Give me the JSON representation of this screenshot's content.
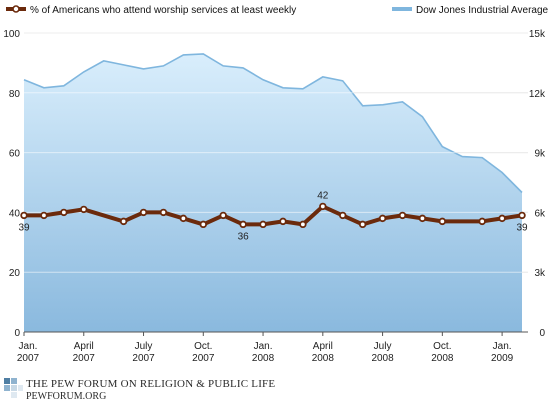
{
  "chart_data": {
    "type": "line",
    "legend": {
      "worship": "% of Americans who attend worship services at least weekly",
      "dow": "Dow Jones Industrial Average"
    },
    "x_ticks": [
      {
        "line1": "Jan.",
        "line2": "2007",
        "month": 0
      },
      {
        "line1": "April",
        "line2": "2007",
        "month": 3
      },
      {
        "line1": "July",
        "line2": "2007",
        "month": 6
      },
      {
        "line1": "Oct.",
        "line2": "2007",
        "month": 9
      },
      {
        "line1": "Jan.",
        "line2": "2008",
        "month": 12
      },
      {
        "line1": "April",
        "line2": "2008",
        "month": 15
      },
      {
        "line1": "July",
        "line2": "2008",
        "month": 18
      },
      {
        "line1": "Oct.",
        "line2": "2008",
        "month": 21
      },
      {
        "line1": "Jan.",
        "line2": "2009",
        "month": 24
      }
    ],
    "left_axis": {
      "ticks": [
        "0",
        "20",
        "40",
        "60",
        "80",
        "100"
      ],
      "range": [
        0,
        100
      ]
    },
    "right_axis": {
      "ticks": [
        "0",
        "3k",
        "6k",
        "9k",
        "12k",
        "15k"
      ],
      "range": [
        0,
        15000
      ]
    },
    "series": [
      {
        "name": "% of Americans who attend worship services at least weekly",
        "axis": "left",
        "color": "#6b2a0c",
        "points": [
          {
            "m": 0.0,
            "v": 39,
            "label": "39"
          },
          {
            "m": 1.0,
            "v": 39
          },
          {
            "m": 2.0,
            "v": 40
          },
          {
            "m": 3.0,
            "v": 41
          },
          {
            "m": 5.0,
            "v": 37
          },
          {
            "m": 6.0,
            "v": 40
          },
          {
            "m": 7.0,
            "v": 40
          },
          {
            "m": 8.0,
            "v": 38
          },
          {
            "m": 9.0,
            "v": 36
          },
          {
            "m": 10.0,
            "v": 39
          },
          {
            "m": 11.0,
            "v": 36,
            "label": "36"
          },
          {
            "m": 12.0,
            "v": 36
          },
          {
            "m": 13.0,
            "v": 37
          },
          {
            "m": 14.0,
            "v": 36
          },
          {
            "m": 15.0,
            "v": 42,
            "label": "42"
          },
          {
            "m": 16.0,
            "v": 39
          },
          {
            "m": 17.0,
            "v": 36
          },
          {
            "m": 18.0,
            "v": 38
          },
          {
            "m": 19.0,
            "v": 39
          },
          {
            "m": 20.0,
            "v": 38
          },
          {
            "m": 21.0,
            "v": 37
          },
          {
            "m": 23.0,
            "v": 37
          },
          {
            "m": 24.0,
            "v": 38
          },
          {
            "m": 25.0,
            "v": 39,
            "label": "39"
          }
        ]
      },
      {
        "name": "Dow Jones Industrial Average",
        "axis": "right",
        "color": "#7fb6de",
        "fill": "area",
        "points": [
          {
            "m": 0.0,
            "v": 12650
          },
          {
            "m": 1.0,
            "v": 12250
          },
          {
            "m": 2.0,
            "v": 12350
          },
          {
            "m": 3.0,
            "v": 13050
          },
          {
            "m": 4.0,
            "v": 13600
          },
          {
            "m": 5.0,
            "v": 13400
          },
          {
            "m": 6.0,
            "v": 13200
          },
          {
            "m": 7.0,
            "v": 13350
          },
          {
            "m": 8.0,
            "v": 13900
          },
          {
            "m": 9.0,
            "v": 13950
          },
          {
            "m": 10.0,
            "v": 13350
          },
          {
            "m": 11.0,
            "v": 13250
          },
          {
            "m": 12.0,
            "v": 12650
          },
          {
            "m": 13.0,
            "v": 12250
          },
          {
            "m": 14.0,
            "v": 12200
          },
          {
            "m": 15.0,
            "v": 12800
          },
          {
            "m": 16.0,
            "v": 12600
          },
          {
            "m": 17.0,
            "v": 11350
          },
          {
            "m": 18.0,
            "v": 11400
          },
          {
            "m": 19.0,
            "v": 11550
          },
          {
            "m": 20.0,
            "v": 10800
          },
          {
            "m": 21.0,
            "v": 9300
          },
          {
            "m": 22.0,
            "v": 8800
          },
          {
            "m": 23.0,
            "v": 8750
          },
          {
            "m": 24.0,
            "v": 8000
          },
          {
            "m": 25.0,
            "v": 7000
          }
        ]
      }
    ],
    "grid": true
  },
  "footer": {
    "org_name": "THE PEW FORUM ON RELIGION & PUBLIC LIFE",
    "url": "PEWFORUM.ORG"
  },
  "colors": {
    "worship_line": "#6b2a0c",
    "dow_line": "#7fb6de",
    "area_top": "#d7ecfb",
    "area_bottom": "#8ab9de"
  }
}
